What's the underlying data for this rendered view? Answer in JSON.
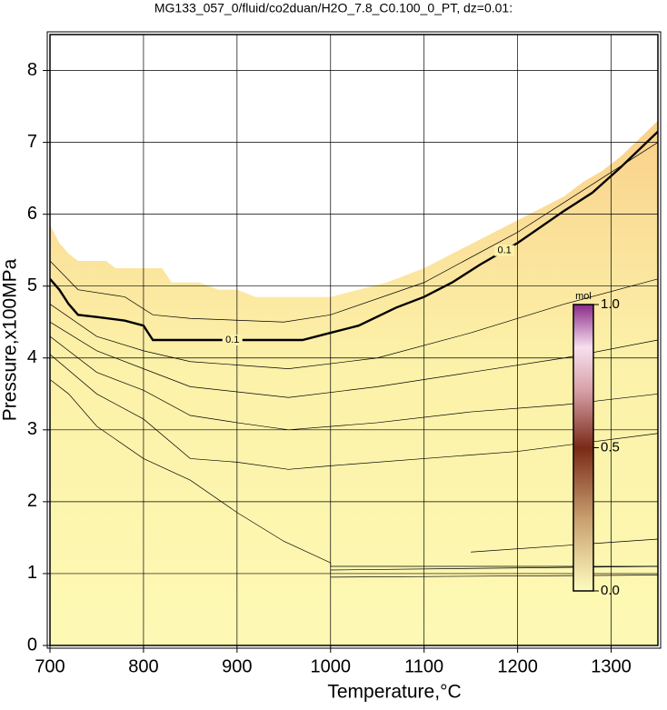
{
  "chart_data": {
    "type": "contour",
    "title": "MG133_057_0/fluid/co2duan/H2O_7.8_C0.100_0_PT, dz=0.01:",
    "x_label": "Temperature,°C",
    "y_label": "Pressure,x100MPa",
    "xlim": [
      700,
      1350
    ],
    "ylim": [
      0,
      8.5
    ],
    "xticks": [
      700,
      800,
      900,
      1000,
      1100,
      1200,
      1300
    ],
    "yticks": [
      0,
      1,
      2,
      3,
      4,
      5,
      6,
      7,
      8
    ],
    "grid": true,
    "boundary": {
      "x": [
        700,
        710,
        720,
        730,
        760,
        770,
        820,
        830,
        860,
        880,
        900,
        910,
        920,
        1000,
        1030,
        1060,
        1080,
        1100,
        1130,
        1160,
        1190,
        1220,
        1250,
        1270,
        1290,
        1310,
        1330,
        1350
      ],
      "y": [
        5.85,
        5.6,
        5.45,
        5.35,
        5.35,
        5.25,
        5.25,
        5.05,
        5.05,
        4.95,
        4.95,
        4.9,
        4.85,
        4.85,
        4.95,
        5.05,
        5.15,
        5.25,
        5.45,
        5.65,
        5.85,
        6.05,
        6.25,
        6.45,
        6.6,
        6.8,
        7.05,
        7.3
      ]
    },
    "contours": [
      {
        "level": 0.1,
        "x": [
          700,
          710,
          720,
          730,
          750,
          780,
          800,
          805,
          810,
          850,
          950,
          970,
          1000,
          1030,
          1070,
          1100,
          1130,
          1160,
          1200,
          1250,
          1280,
          1310,
          1350
        ],
        "y": [
          5.1,
          4.95,
          4.75,
          4.6,
          4.57,
          4.52,
          4.45,
          4.35,
          4.25,
          4.25,
          4.25,
          4.25,
          4.35,
          4.45,
          4.7,
          4.85,
          5.05,
          5.3,
          5.6,
          6.05,
          6.3,
          6.65,
          7.15
        ]
      },
      {
        "x": [
          700,
          720,
          750,
          800,
          850,
          900,
          950,
          1000,
          1000,
          1350
        ],
        "y": [
          3.7,
          3.5,
          3.05,
          2.6,
          2.3,
          1.85,
          1.45,
          1.15,
          1.1,
          1.1
        ]
      },
      {
        "x": [
          700,
          750,
          800,
          850,
          900,
          955,
          1000,
          1100,
          1200,
          1350
        ],
        "y": [
          4.05,
          3.5,
          3.15,
          2.6,
          2.55,
          2.45,
          2.5,
          2.6,
          2.7,
          2.95
        ]
      },
      {
        "x": [
          700,
          750,
          800,
          850,
          900,
          955,
          1050,
          1150,
          1250,
          1350
        ],
        "y": [
          4.3,
          3.8,
          3.55,
          3.2,
          3.1,
          3.0,
          3.1,
          3.25,
          3.35,
          3.5
        ]
      },
      {
        "x": [
          700,
          750,
          800,
          850,
          955,
          1050,
          1150,
          1250,
          1350
        ],
        "y": [
          4.5,
          4.1,
          3.85,
          3.6,
          3.45,
          3.6,
          3.8,
          4.0,
          4.25
        ]
      },
      {
        "x": [
          700,
          750,
          800,
          850,
          955,
          1050,
          1150,
          1250,
          1350
        ],
        "y": [
          4.75,
          4.3,
          4.1,
          3.95,
          3.85,
          4.0,
          4.35,
          4.75,
          5.1
        ]
      },
      {
        "x": [
          700,
          730,
          780,
          810,
          850,
          950,
          1000,
          1100,
          1200,
          1350
        ],
        "y": [
          5.35,
          4.95,
          4.85,
          4.6,
          4.55,
          4.5,
          4.6,
          5.05,
          5.75,
          7.0
        ]
      },
      {
        "x": [
          1150,
          1350
        ],
        "y": [
          1.3,
          1.48
        ]
      },
      {
        "x": [
          1000,
          1350
        ],
        "y": [
          1.05,
          1.1
        ]
      },
      {
        "x": [
          1000,
          1350
        ],
        "y": [
          0.95,
          0.98
        ]
      }
    ],
    "colorbar": {
      "label": "mol",
      "lim": [
        0,
        1
      ],
      "ticks": [
        {
          "value": 0,
          "label": "0.0"
        },
        0.5,
        {
          "value": 1,
          "label": "1.0"
        }
      ]
    }
  }
}
